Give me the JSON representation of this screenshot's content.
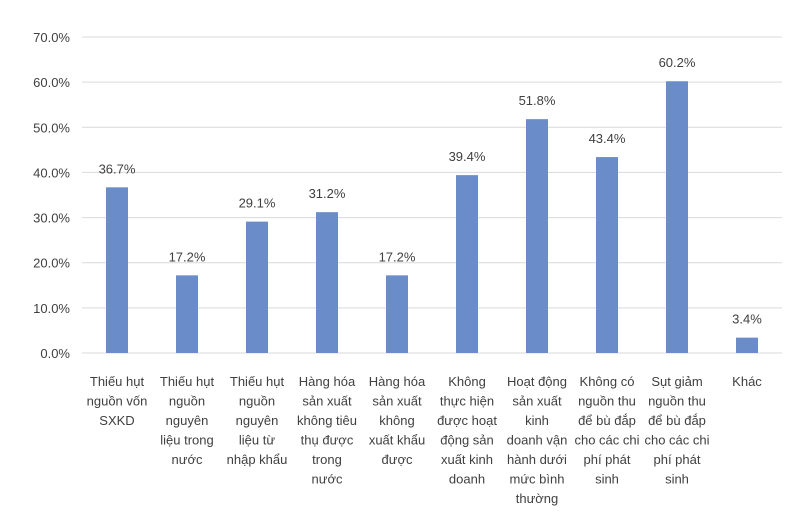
{
  "chart_data": {
    "type": "bar",
    "categories": [
      [
        "Thiếu hụt",
        "nguồn vốn",
        "SXKD"
      ],
      [
        "Thiếu hụt",
        "nguồn",
        "nguyên",
        "liệu trong",
        "nước"
      ],
      [
        "Thiếu hụt",
        "nguồn",
        "nguyên",
        "liệu từ",
        "nhập khẩu"
      ],
      [
        "Hàng hóa",
        "sản xuất",
        "không tiêu",
        "thụ được",
        "trong",
        "nước"
      ],
      [
        "Hàng hóa",
        "sản xuất",
        "không",
        "xuất khẩu",
        "được"
      ],
      [
        "Không",
        "thực hiện",
        "được hoạt",
        "động sản",
        "xuất kinh",
        "doanh"
      ],
      [
        "Hoạt động",
        "sản xuất",
        "kinh",
        "doanh vận",
        "hành dưới",
        "mức bình",
        "thường"
      ],
      [
        "Không có",
        "nguồn thu",
        "để bù đắp",
        "cho các chi",
        "phí phát",
        "sinh"
      ],
      [
        "Sụt giảm",
        "nguồn thu",
        "để bù đắp",
        "cho các chi",
        "phí phát",
        "sinh"
      ],
      [
        "Khác"
      ]
    ],
    "values": [
      36.7,
      17.2,
      29.1,
      31.2,
      17.2,
      39.4,
      51.8,
      43.4,
      60.2,
      3.4
    ],
    "data_labels": [
      "36.7%",
      "17.2%",
      "29.1%",
      "31.2%",
      "17.2%",
      "39.4%",
      "51.8%",
      "43.4%",
      "60.2%",
      "3.4%"
    ],
    "yticks": [
      "0.0%",
      "10.0%",
      "20.0%",
      "30.0%",
      "40.0%",
      "50.0%",
      "60.0%",
      "70.0%"
    ],
    "ylim": [
      0,
      70
    ],
    "grid": true,
    "bar_color": "#6a8cc8",
    "grid_color": "#d9d9d9",
    "title": "",
    "xlabel": "",
    "ylabel": ""
  }
}
